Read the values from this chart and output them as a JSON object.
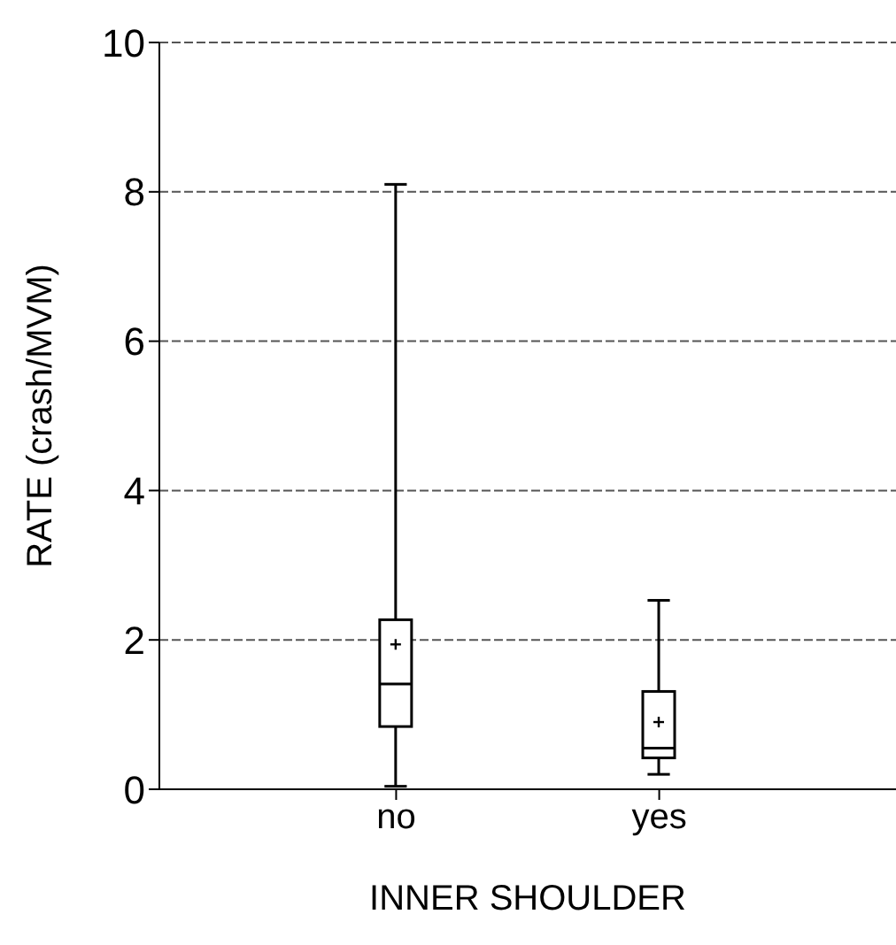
{
  "chart_data": {
    "type": "box",
    "xlabel": "INNER SHOULDER",
    "ylabel": "RATE (crash/MVM)",
    "categories": [
      "no",
      "yes"
    ],
    "boxes": [
      {
        "low": 0.04,
        "q1": 0.84,
        "median": 1.41,
        "q3": 2.27,
        "high": 8.1,
        "mean": 1.94
      },
      {
        "low": 0.2,
        "q1": 0.42,
        "median": 0.55,
        "q3": 1.31,
        "high": 2.53,
        "mean": 0.9
      }
    ],
    "color": "#000000",
    "ylim": [
      0,
      10
    ],
    "yticks": [
      0,
      2,
      4,
      6,
      8,
      10
    ],
    "grid": "y"
  }
}
